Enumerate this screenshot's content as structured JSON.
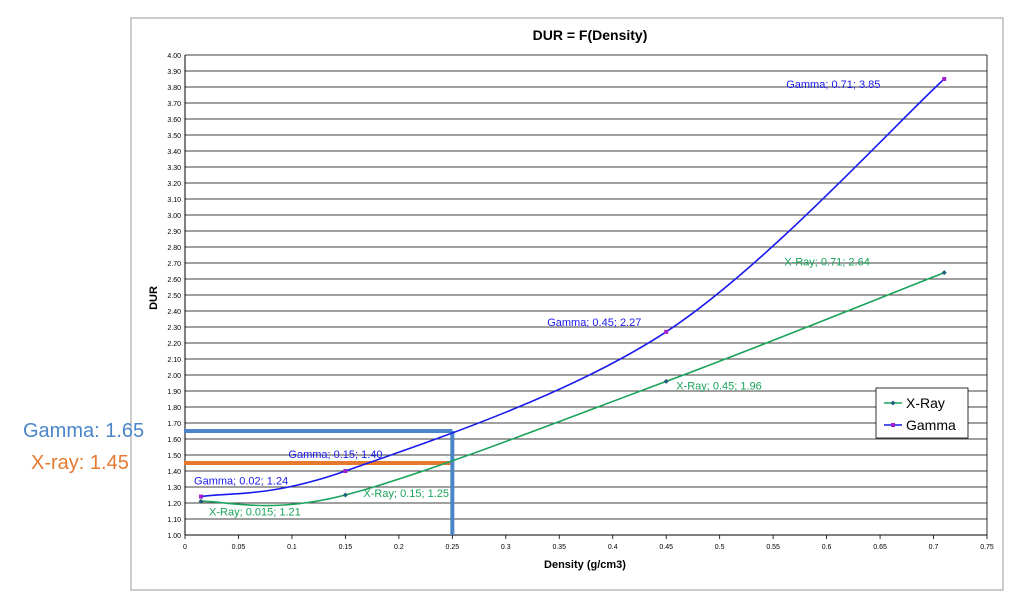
{
  "chart_data": {
    "type": "line",
    "title": "DUR = F(Density)",
    "xlabel": "Density (g/cm3)",
    "ylabel": "DUR",
    "xlim": [
      0,
      0.75
    ],
    "ylim": [
      1.0,
      4.0
    ],
    "x_ticks": [
      "0",
      "0.05",
      "0.1",
      "0.15",
      "0.2",
      "0.25",
      "0.3",
      "0.35",
      "0.4",
      "0.45",
      "0.5",
      "0.55",
      "0.6",
      "0.65",
      "0.7",
      "0.75"
    ],
    "y_ticks": [
      "1.00",
      "1.10",
      "1.20",
      "1.30",
      "1.40",
      "1.50",
      "1.60",
      "1.70",
      "1.80",
      "1.90",
      "2.00",
      "2.10",
      "2.20",
      "2.30",
      "2.40",
      "2.50",
      "2.60",
      "2.70",
      "2.80",
      "2.90",
      "3.00",
      "3.10",
      "3.20",
      "3.30",
      "3.40",
      "3.50",
      "3.60",
      "3.70",
      "3.80",
      "3.90",
      "4.00"
    ],
    "grid": "horizontal",
    "legend_position": "right",
    "series": [
      {
        "name": "X-Ray",
        "color": "#1aa35a",
        "marker_color": "#1f5f7a",
        "points": [
          {
            "x": 0.015,
            "y": 1.21,
            "label": "X-Ray; 0.015; 1.21"
          },
          {
            "x": 0.15,
            "y": 1.25,
            "label": "X-Ray;  0.15; 1.25"
          },
          {
            "x": 0.45,
            "y": 1.96,
            "label": "X-Ray; 0.45; 1.96"
          },
          {
            "x": 0.71,
            "y": 2.64,
            "label": "X-Ray; 0.71; 2.64"
          }
        ]
      },
      {
        "name": "Gamma",
        "color": "#1a1aee",
        "marker_color": "#a020d0",
        "points": [
          {
            "x": 0.015,
            "y": 1.24,
            "label": "Gamma; 0.02; 1.24"
          },
          {
            "x": 0.15,
            "y": 1.4,
            "label": "Gamma; 0.15; 1.40"
          },
          {
            "x": 0.45,
            "y": 2.27,
            "label": "Gamma;  0.45; 2.27"
          },
          {
            "x": 0.71,
            "y": 3.85,
            "label": "Gamma;  0.71; 3.85"
          }
        ]
      }
    ],
    "annotations": [
      {
        "name": "gamma-guide",
        "text": "Gamma: 1.65",
        "x": 0.25,
        "y": 1.65,
        "color": "#4a86c8"
      },
      {
        "name": "xray-guide",
        "text": "X-ray: 1.45",
        "x": 0.25,
        "y": 1.45,
        "color": "#e57a2f"
      }
    ]
  }
}
